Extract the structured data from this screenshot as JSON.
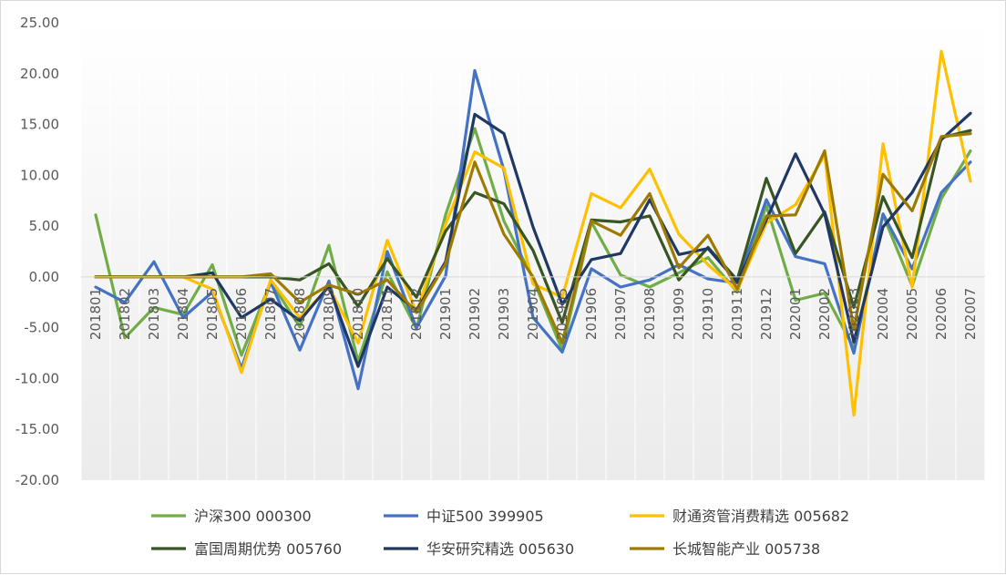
{
  "chart_data": {
    "type": "line",
    "title": "",
    "xlabel": "",
    "ylabel": "",
    "ylim": [
      -20,
      25
    ],
    "yticks": [
      "25.00",
      "20.00",
      "15.00",
      "10.00",
      "5.00",
      "0.00",
      "-5.00",
      "-10.00",
      "-15.00",
      "-20.00"
    ],
    "ytick_values": [
      25,
      20,
      15,
      10,
      5,
      0,
      -5,
      -10,
      -15,
      -20
    ],
    "grid": false,
    "legend_position": "bottom",
    "categories": [
      "201801",
      "201802",
      "201803",
      "201804",
      "201805",
      "201806",
      "201807",
      "201808",
      "201809",
      "201810",
      "201811",
      "201812",
      "201901",
      "201902",
      "201903",
      "201904",
      "201905",
      "201906",
      "201907",
      "201908",
      "201909",
      "201910",
      "201911",
      "201912",
      "202001",
      "202002",
      "202003",
      "202004",
      "202005",
      "202006",
      "202007"
    ],
    "series": [
      {
        "name": "沪深300 000300",
        "color": "#70ad47",
        "values": [
          6.1,
          -6.0,
          -3.0,
          -3.7,
          1.2,
          -7.7,
          -0.5,
          -4.9,
          3.1,
          -8.3,
          0.5,
          -5.1,
          6.1,
          14.6,
          5.5,
          -0.2,
          -7.2,
          5.4,
          0.2,
          -1.0,
          0.4,
          1.9,
          -1.5,
          7.0,
          -2.3,
          -1.6,
          -7.0,
          6.1,
          -0.9,
          7.7,
          12.4
        ]
      },
      {
        "name": "中证500 399905",
        "color": "#4472c4",
        "values": [
          -1.0,
          -2.5,
          1.5,
          -4.0,
          -1.5,
          -9.0,
          -0.5,
          -7.2,
          -0.4,
          -11.0,
          2.5,
          -5.0,
          0.1,
          20.3,
          10.5,
          -4.0,
          -7.4,
          0.8,
          -1.0,
          -0.3,
          1.2,
          -0.2,
          -0.6,
          7.6,
          2.0,
          1.3,
          -7.5,
          6.2,
          0.8,
          8.3,
          11.3
        ]
      },
      {
        "name": "财通资管消费精选 005682",
        "color": "#ffc000",
        "values": [
          0,
          0,
          0,
          0,
          -1.2,
          -9.4,
          -0.3,
          -4.0,
          -1.0,
          -6.5,
          3.6,
          -3.5,
          5.2,
          12.3,
          10.7,
          -0.7,
          -2.0,
          8.2,
          6.8,
          10.6,
          4.2,
          1.2,
          -1.3,
          5.3,
          7.1,
          12.0,
          -13.6,
          13.1,
          -1.0,
          22.2,
          9.4
        ]
      },
      {
        "name": "富国周期优势 005760",
        "color": "#375623",
        "values": [
          0,
          0,
          0,
          0,
          0,
          0,
          0,
          -0.3,
          1.3,
          -2.9,
          1.8,
          -2.0,
          4.5,
          8.3,
          7.2,
          2.6,
          -4.5,
          5.6,
          5.4,
          6.0,
          -0.3,
          2.9,
          -0.3,
          9.7,
          2.3,
          6.4,
          -3.0,
          7.9,
          1.9,
          13.7,
          14.4
        ]
      },
      {
        "name": "华安研究精选 005630",
        "color": "#203864",
        "values": [
          0,
          0,
          0,
          0,
          0.4,
          -4.0,
          -2.2,
          -4.3,
          -0.9,
          -8.8,
          -1.0,
          -3.3,
          1.5,
          16.0,
          14.1,
          4.9,
          -2.7,
          1.7,
          2.3,
          7.6,
          2.2,
          2.8,
          -0.5,
          5.6,
          12.1,
          6.2,
          -6.4,
          4.9,
          8.3,
          13.5,
          16.1
        ]
      },
      {
        "name": "长城智能产业 005738",
        "color": "#9e7b00",
        "values": [
          0,
          0,
          0,
          0,
          0,
          0,
          0.3,
          -2.5,
          -0.8,
          -1.7,
          -0.3,
          -3.5,
          1.3,
          11.3,
          4.2,
          0.0,
          -6.5,
          5.5,
          4.1,
          8.2,
          0.9,
          4.1,
          -1.2,
          6.0,
          6.1,
          12.4,
          -5.2,
          10.1,
          6.5,
          13.8,
          14.1
        ]
      }
    ]
  }
}
